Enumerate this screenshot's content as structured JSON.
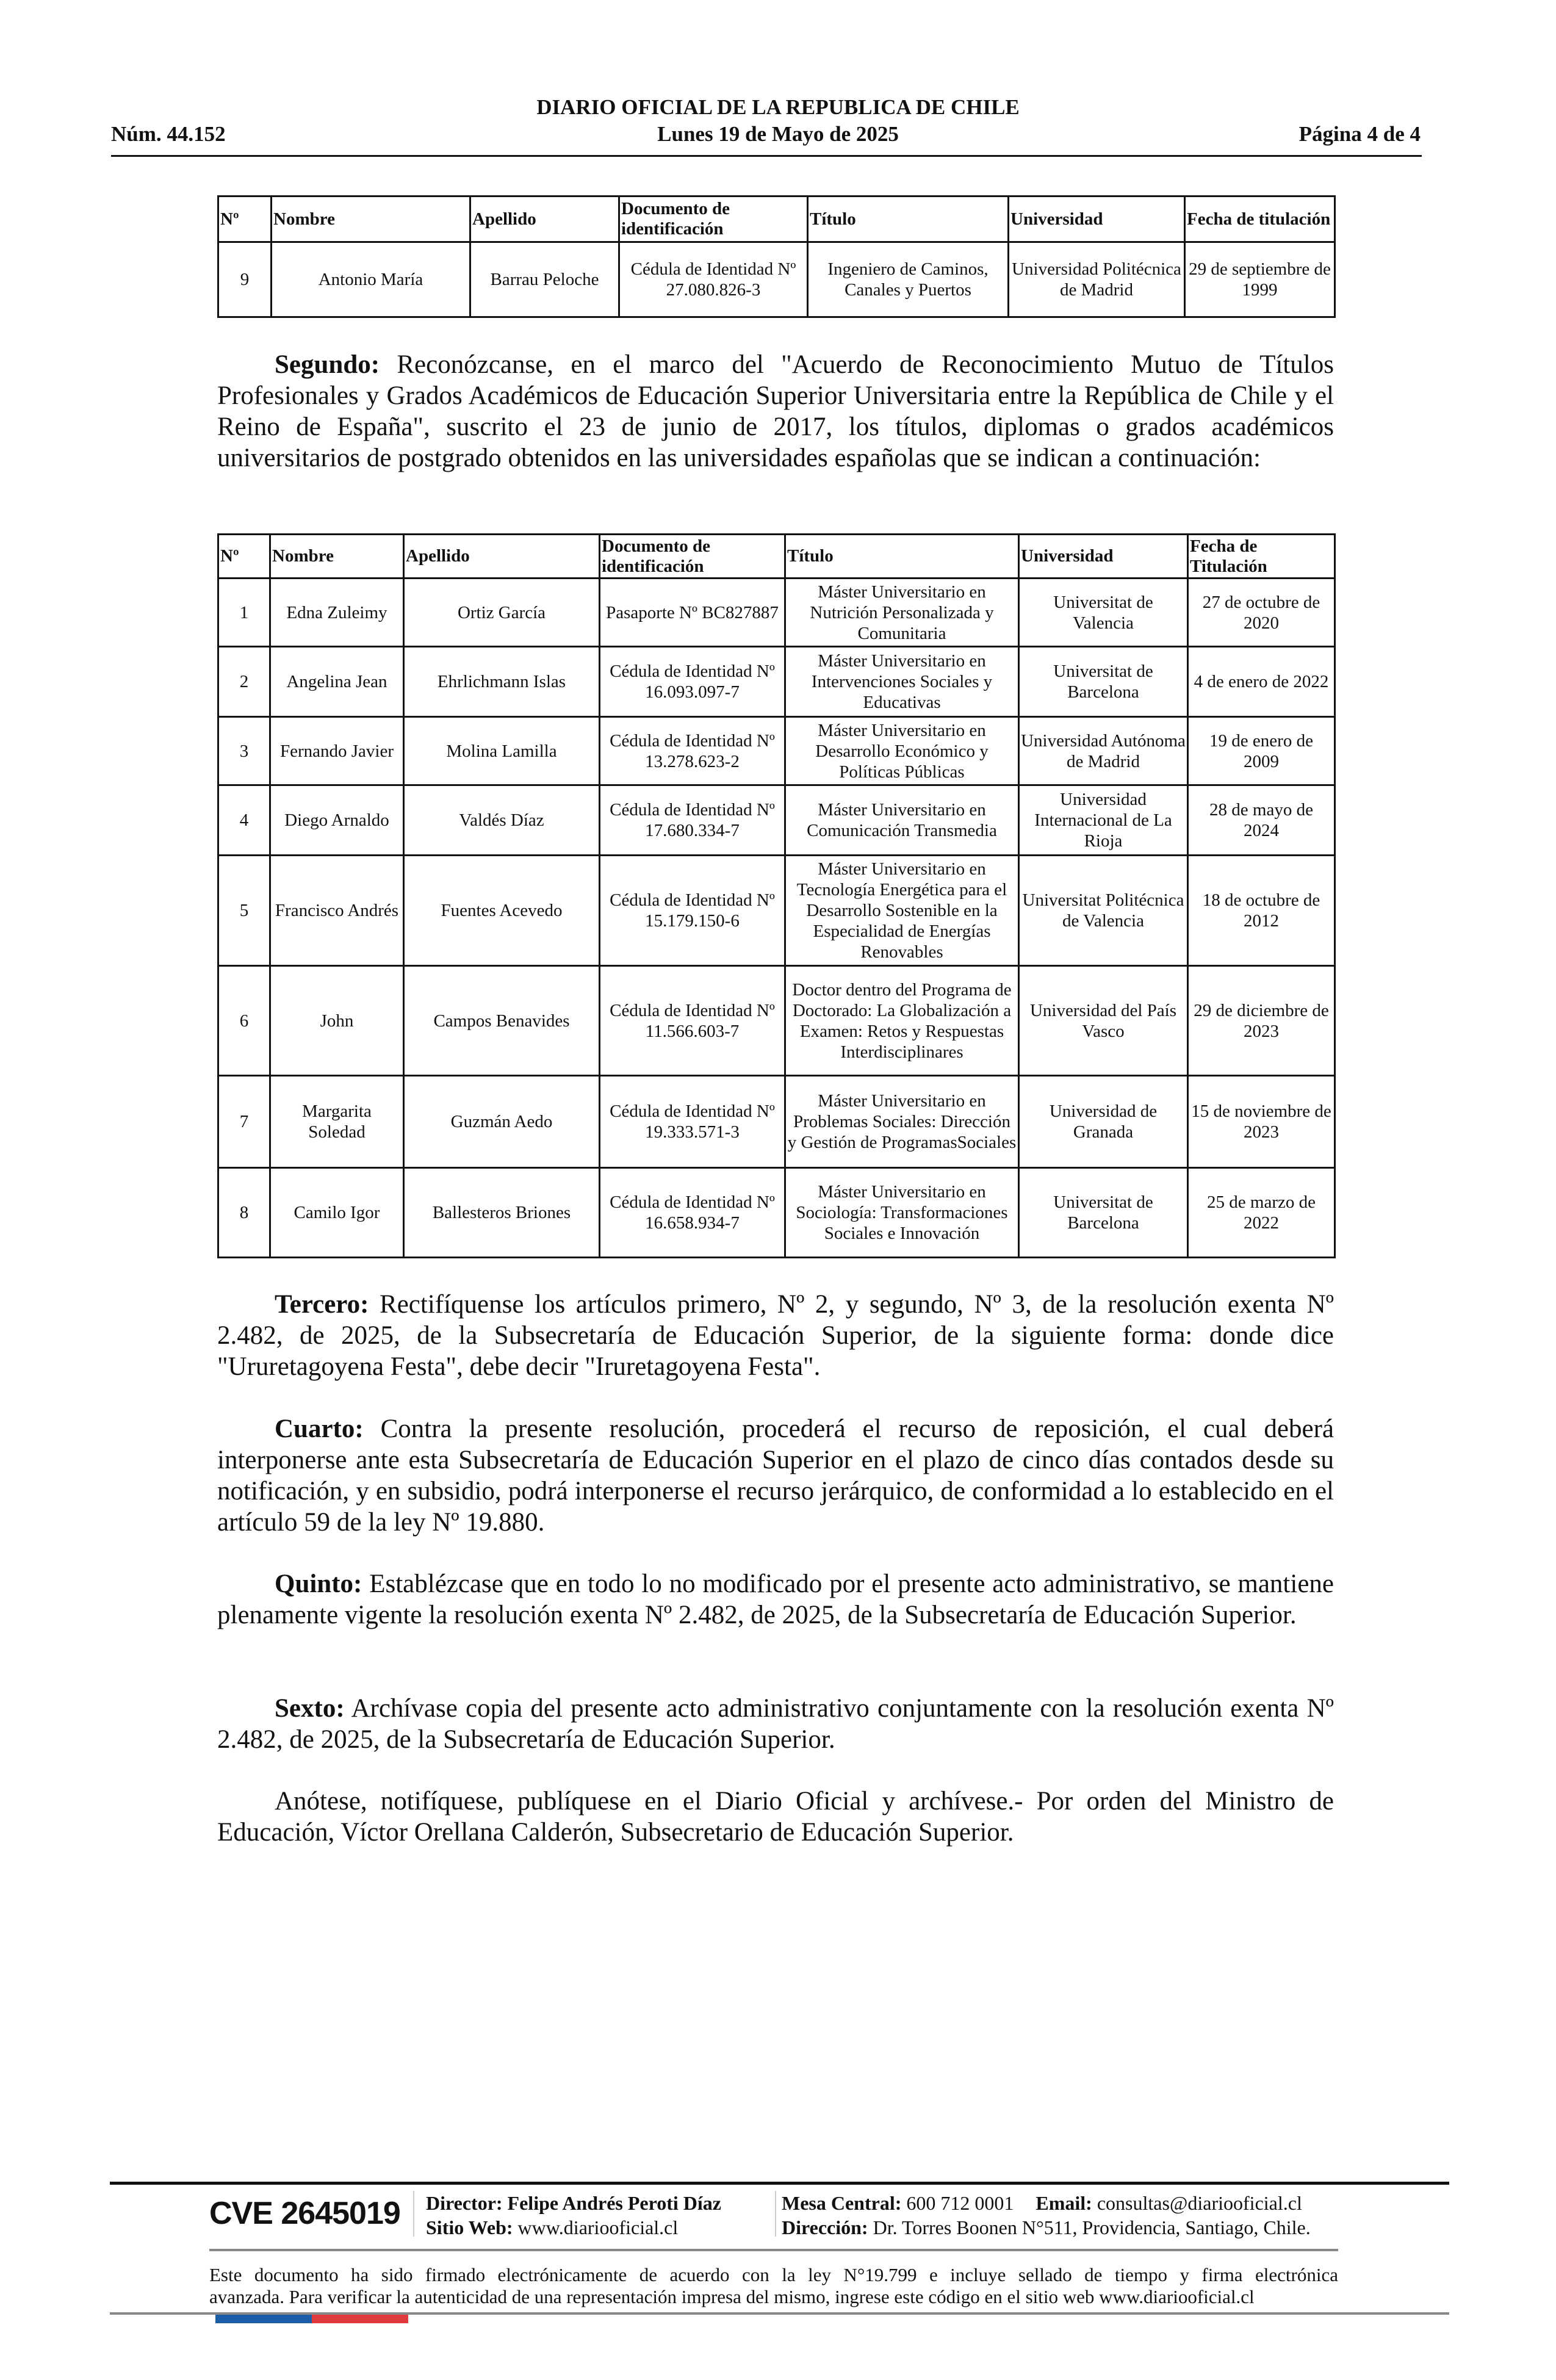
{
  "header": {
    "title": "DIARIO OFICIAL DE LA REPUBLICA DE CHILE",
    "issue_number": "Núm. 44.152",
    "date": "Lunes 19 de Mayo de 2025",
    "page": "Página 4 de 4"
  },
  "table1": {
    "columns": [
      "Nº",
      "Nombre",
      "Apellido",
      "Documento de identificación",
      "Título",
      "Universidad",
      "Fecha de titulación"
    ],
    "rows": [
      [
        "9",
        "Antonio María",
        "Barrau Peloche",
        "Cédula de Identidad Nº 27.080.826-3",
        "Ingeniero de Caminos, Canales y Puertos",
        "Universidad Politécnica de Madrid",
        "29 de septiembre de 1999"
      ]
    ]
  },
  "segundo": {
    "label": "Segundo:",
    "text": " Reconózcanse, en el marco del \"Acuerdo de Reconocimiento Mutuo de Títulos Profesionales y Grados Académicos de Educación Superior Universitaria entre la República de Chile y el Reino de España\", suscrito el 23 de junio de 2017, los títulos, diplomas o grados académicos universitarios de postgrado obtenidos en las universidades españolas que se indican a continuación:"
  },
  "table2": {
    "columns": [
      "Nº",
      "Nombre",
      "Apellido",
      "Documento de identificación",
      "Título",
      "Universidad",
      "Fecha de Titulación"
    ],
    "rows": [
      [
        "1",
        "Edna Zuleimy",
        "Ortiz García",
        "Pasaporte Nº BC827887",
        "Máster Universitario en Nutrición Personalizada y Comunitaria",
        "Universitat de Valencia",
        "27 de octubre de 2020"
      ],
      [
        "2",
        "Angelina Jean",
        "Ehrlichmann Islas",
        "Cédula de Identidad Nº 16.093.097-7",
        "Máster Universitario en Intervenciones Sociales y Educativas",
        "Universitat de Barcelona",
        "4 de enero de 2022"
      ],
      [
        "3",
        "Fernando Javier",
        "Molina Lamilla",
        "Cédula de Identidad Nº 13.278.623-2",
        "Máster Universitario en Desarrollo Económico y Políticas Públicas",
        "Universidad Autónoma de Madrid",
        "19 de enero de 2009"
      ],
      [
        "4",
        "Diego Arnaldo",
        "Valdés Díaz",
        "Cédula de Identidad Nº 17.680.334-7",
        "Máster Universitario en Comunicación Transmedia",
        "Universidad Internacional de La Rioja",
        "28 de mayo de 2024"
      ],
      [
        "5",
        "Francisco Andrés",
        "Fuentes Acevedo",
        "Cédula de Identidad Nº 15.179.150-6",
        "Máster Universitario en Tecnología Energética para el Desarrollo Sostenible en la Especialidad de Energías Renovables",
        "Universitat Politécnica de Valencia",
        "18 de octubre de 2012"
      ],
      [
        "6",
        "John",
        "Campos Benavides",
        "Cédula de Identidad Nº 11.566.603-7",
        "Doctor dentro del Programa de Doctorado: La Globalización a Examen: Retos y Respuestas Interdisciplinares",
        "Universidad del País Vasco",
        "29 de diciembre de 2023"
      ],
      [
        "7",
        "Margarita Soledad",
        "Guzmán Aedo",
        "Cédula de Identidad Nº 19.333.571-3",
        "Máster Universitario en Problemas Sociales: Dirección y Gestión de ProgramasSociales",
        "Universidad de Granada",
        "15 de noviembre de 2023"
      ],
      [
        "8",
        "Camilo Igor",
        "Ballesteros Briones",
        "Cédula de Identidad Nº 16.658.934-7",
        "Máster Universitario en Sociología: Transformaciones Sociales e Innovación",
        "Universitat de Barcelona",
        "25 de marzo de 2022"
      ]
    ]
  },
  "tercero": {
    "label": "Tercero:",
    "text": " Rectifíquense los artículos primero, Nº 2, y segundo, Nº 3, de la resolución exenta Nº 2.482, de 2025, de la Subsecretaría de Educación Superior, de la siguiente forma: donde dice \"Ururetagoyena Festa\", debe decir \"Iruretagoyena Festa\"."
  },
  "cuarto": {
    "label": "Cuarto:",
    "text": " Contra la presente resolución, procederá el recurso de reposición, el cual deberá interponerse ante esta Subsecretaría de Educación Superior en el plazo de cinco días contados desde su notificación, y en subsidio, podrá interponerse el recurso jerárquico, de conformidad a lo establecido en el artículo 59 de la ley Nº 19.880."
  },
  "quinto": {
    "label": "Quinto:",
    "text": " Establézcase que en todo lo no modificado por el presente acto administrativo, se mantiene plenamente vigente la resolución exenta Nº 2.482, de 2025, de la Subsecretaría de Educación Superior."
  },
  "sexto": {
    "label": "Sexto:",
    "text": " Archívase copia del presente acto administrativo conjuntamente con la resolución exenta Nº 2.482, de 2025, de la Subsecretaría de Educación Superior."
  },
  "closing": "Anótese, notifíquese, publíquese en el Diario Oficial y archívese.- Por orden del Ministro de Educación, Víctor Orellana Calderón, Subsecretario de Educación Superior.",
  "footer": {
    "cve": "CVE 2645019",
    "director_label": "Director:",
    "director": " Felipe Andrés Peroti Díaz",
    "web_label": "Sitio Web:",
    "web": " www.diariooficial.cl",
    "phone_label": "Mesa Central:",
    "phone": " 600 712 0001",
    "email_label": "Email:",
    "email": " consultas@diariooficial.cl",
    "address_label": "Dirección:",
    "address": " Dr. Torres Boonen N°511, Providencia, Santiago, Chile.",
    "note_line1": "Este documento ha sido firmado electrónicamente de acuerdo con la ley N°19.799 e incluye sellado de tiempo y firma electrónica",
    "note_line2": "avanzada. Para verificar la autenticidad de una representación impresa del mismo, ingrese este código en el sitio web www.diariooficial.cl",
    "flag_colors": [
      "#1a5ea8",
      "#e0393e"
    ]
  }
}
